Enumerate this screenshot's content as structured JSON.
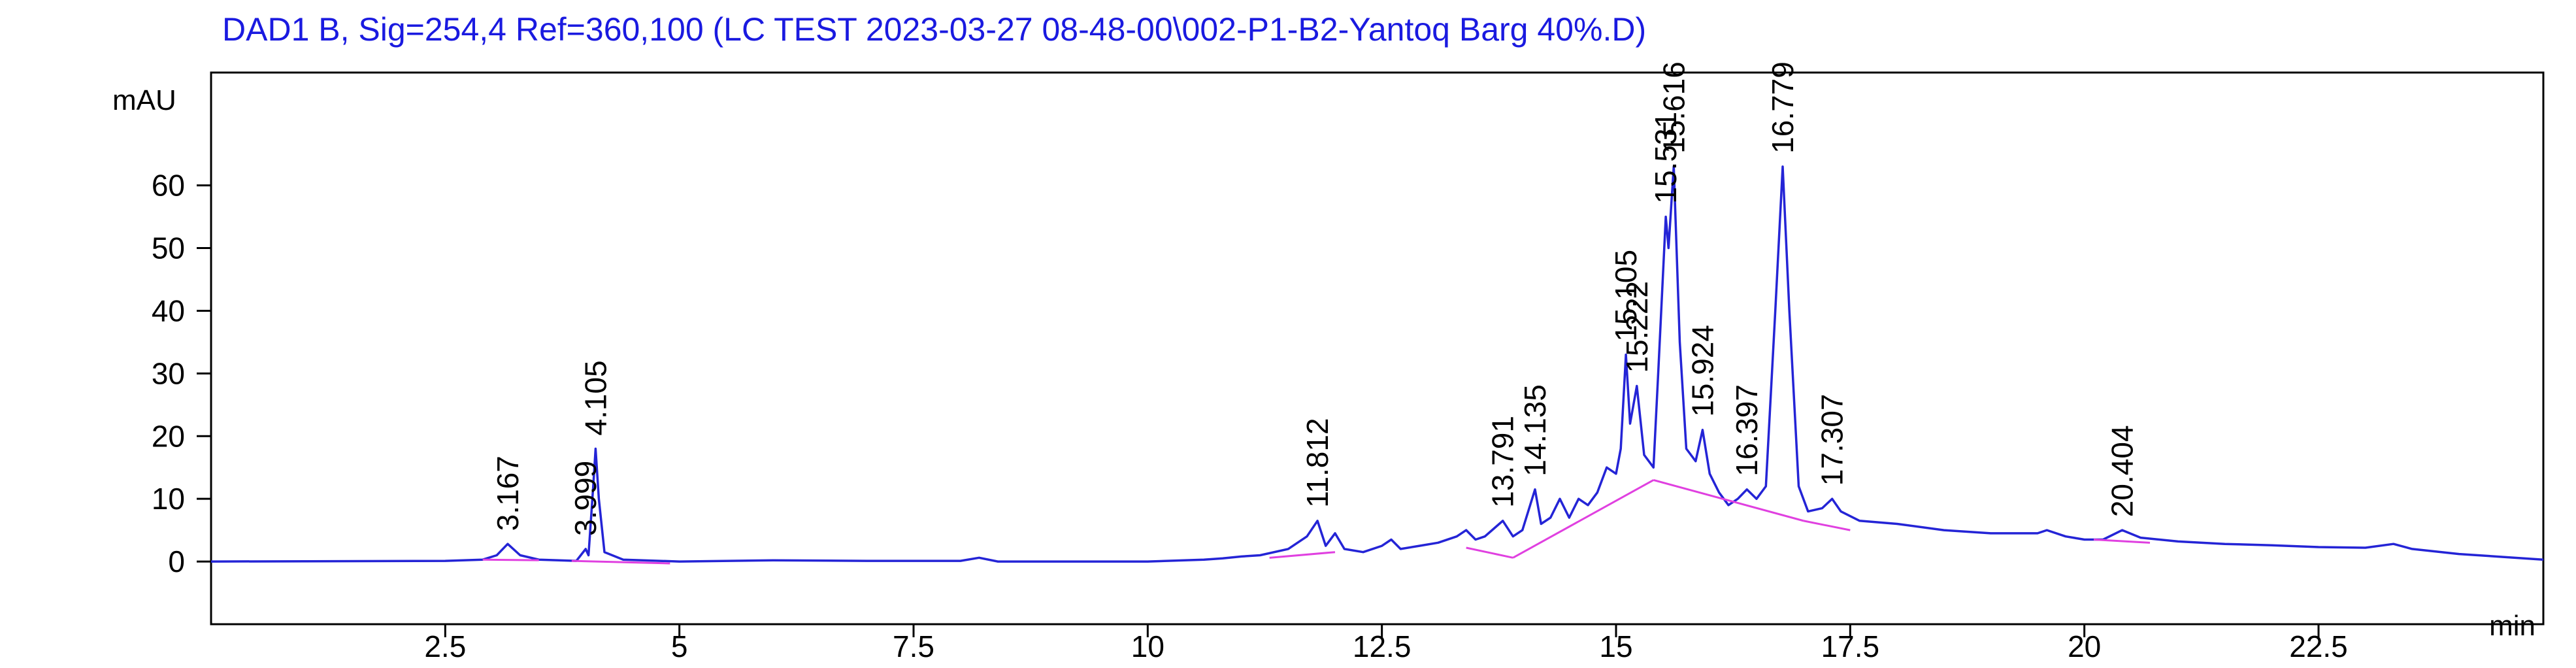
{
  "chart_data": {
    "type": "line",
    "title": "DAD1 B, Sig=254,4 Ref=360,100 (LC TEST 2023-03-27 08-48-00\\002-P1-B2-Yantoq Barg 40%.D)",
    "ylabel": "mAU",
    "xlabel": "min",
    "color": "#2424d6",
    "xlim": [
      0,
      24.9
    ],
    "ylim": [
      -10,
      78
    ],
    "xticks": [
      2.5,
      5,
      7.5,
      10,
      12.5,
      15,
      17.5,
      20,
      22.5
    ],
    "yticks": [
      0,
      10,
      20,
      30,
      40,
      50,
      60
    ],
    "x": [
      0,
      2.5,
      2.9,
      3.05,
      3.167,
      3.3,
      3.5,
      3.9,
      3.999,
      4.03,
      4.08,
      4.105,
      4.14,
      4.2,
      4.4,
      5,
      6,
      7,
      8,
      8.2,
      8.4,
      9,
      10,
      10.6,
      10.8,
      11,
      11.2,
      11.5,
      11.7,
      11.812,
      11.9,
      12.0,
      12.1,
      12.3,
      12.5,
      12.6,
      12.7,
      12.9,
      13.1,
      13.3,
      13.4,
      13.5,
      13.6,
      13.791,
      13.9,
      14.0,
      14.135,
      14.2,
      14.3,
      14.4,
      14.5,
      14.6,
      14.7,
      14.8,
      14.9,
      15.0,
      15.05,
      15.105,
      15.15,
      15.222,
      15.3,
      15.4,
      15.45,
      15.531,
      15.56,
      15.616,
      15.68,
      15.75,
      15.85,
      15.924,
      16.0,
      16.1,
      16.2,
      16.3,
      16.397,
      16.5,
      16.6,
      16.7,
      16.779,
      16.85,
      16.95,
      17.05,
      17.2,
      17.307,
      17.4,
      17.6,
      18,
      18.5,
      19,
      19.5,
      19.6,
      19.8,
      20,
      20.2,
      20.404,
      20.6,
      21,
      21.5,
      22,
      22.5,
      23,
      23.3,
      23.5,
      24,
      24.9
    ],
    "values": [
      0,
      0.1,
      0.3,
      1,
      2.8,
      1,
      0.3,
      0.1,
      2,
      1,
      12,
      18,
      10,
      1.5,
      0.3,
      0,
      0.2,
      0.1,
      0.1,
      0.6,
      0,
      0,
      0,
      0.3,
      0.5,
      0.8,
      1,
      2,
      4,
      6.5,
      2.5,
      4.5,
      2,
      1.5,
      2.5,
      3.5,
      2,
      2.5,
      3,
      4,
      5,
      3.5,
      4,
      6.5,
      4,
      5,
      11.5,
      6,
      7,
      10,
      7,
      10,
      9,
      11,
      15,
      14,
      18,
      33,
      22,
      28,
      17,
      15,
      30,
      55,
      50,
      63,
      35,
      18,
      16,
      21,
      14,
      11,
      9,
      10,
      11.5,
      10,
      12,
      40,
      63,
      40,
      12,
      8,
      8.5,
      10,
      8,
      6.5,
      6,
      5,
      4.5,
      4.5,
      5,
      4,
      3.5,
      3.5,
      5,
      3.8,
      3.2,
      2.8,
      2.6,
      2.3,
      2.2,
      2.8,
      2,
      1.2,
      0.3
    ],
    "peaks": [
      3.167,
      3.999,
      4.105,
      11.812,
      13.791,
      14.135,
      15.105,
      15.222,
      15.531,
      15.616,
      15.924,
      16.397,
      16.779,
      17.307,
      20.404
    ],
    "baseline_color": "#e040e0",
    "baselines": [
      [
        2.9,
        0.3,
        3.5,
        0.2
      ],
      [
        3.85,
        0.1,
        4.9,
        -0.3
      ],
      [
        11.3,
        0.6,
        12.0,
        1.5
      ],
      [
        13.4,
        2.2,
        13.9,
        0.6
      ],
      [
        13.9,
        0.6,
        15.4,
        13
      ],
      [
        15.4,
        13,
        17.0,
        6.5
      ],
      [
        17.0,
        6.5,
        17.5,
        5
      ],
      [
        20.1,
        3.5,
        20.7,
        3
      ]
    ]
  }
}
